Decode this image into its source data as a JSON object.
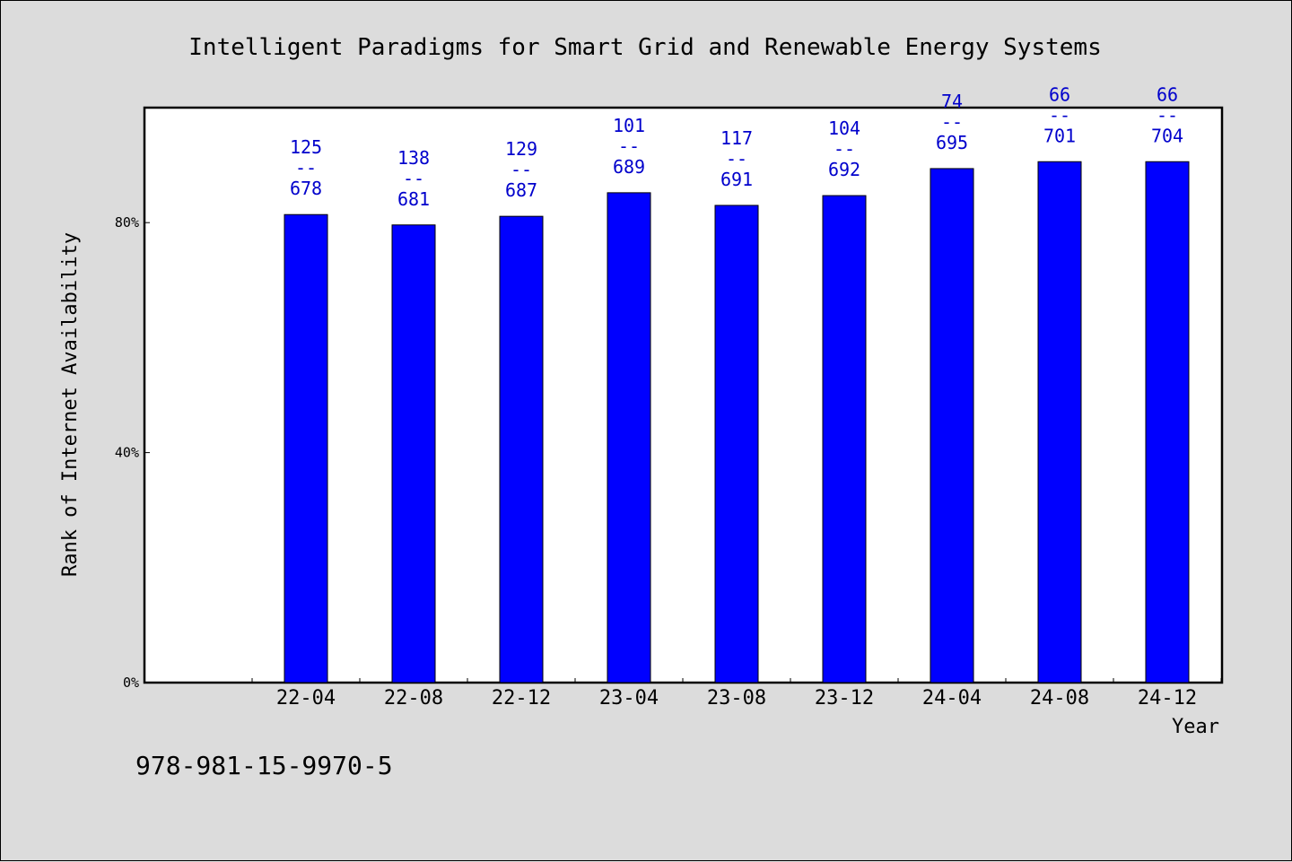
{
  "chart_data": {
    "type": "bar",
    "title": "Intelligent Paradigms for Smart Grid and Renewable Energy Systems",
    "xlabel": "Year",
    "ylabel": "Rank of Internet Availability",
    "categories": [
      "22-04",
      "22-08",
      "22-12",
      "23-04",
      "23-08",
      "23-12",
      "24-04",
      "24-08",
      "24-12"
    ],
    "values": [
      81.4,
      79.6,
      81.1,
      85.2,
      83.0,
      84.7,
      89.4,
      90.6,
      90.6
    ],
    "data_labels": [
      {
        "top": "125",
        "sep": "--",
        "bottom": "678"
      },
      {
        "top": "138",
        "sep": "--",
        "bottom": "681"
      },
      {
        "top": "129",
        "sep": "--",
        "bottom": "687"
      },
      {
        "top": "101",
        "sep": "--",
        "bottom": "689"
      },
      {
        "top": "117",
        "sep": "--",
        "bottom": "691"
      },
      {
        "top": "104",
        "sep": "--",
        "bottom": "692"
      },
      {
        "top": "74",
        "sep": "--",
        "bottom": "695"
      },
      {
        "top": "66",
        "sep": "--",
        "bottom": "701"
      },
      {
        "top": "66",
        "sep": "--",
        "bottom": "704"
      }
    ],
    "yticks": [
      0,
      40,
      80
    ],
    "ytick_labels": [
      "0%",
      "40%",
      "80%"
    ],
    "ylim": [
      0,
      100
    ],
    "grid": false,
    "legend": "none",
    "bar_color": "#0000ff",
    "label_color": "#0000cc"
  },
  "footer_text": "978-981-15-9970-5"
}
